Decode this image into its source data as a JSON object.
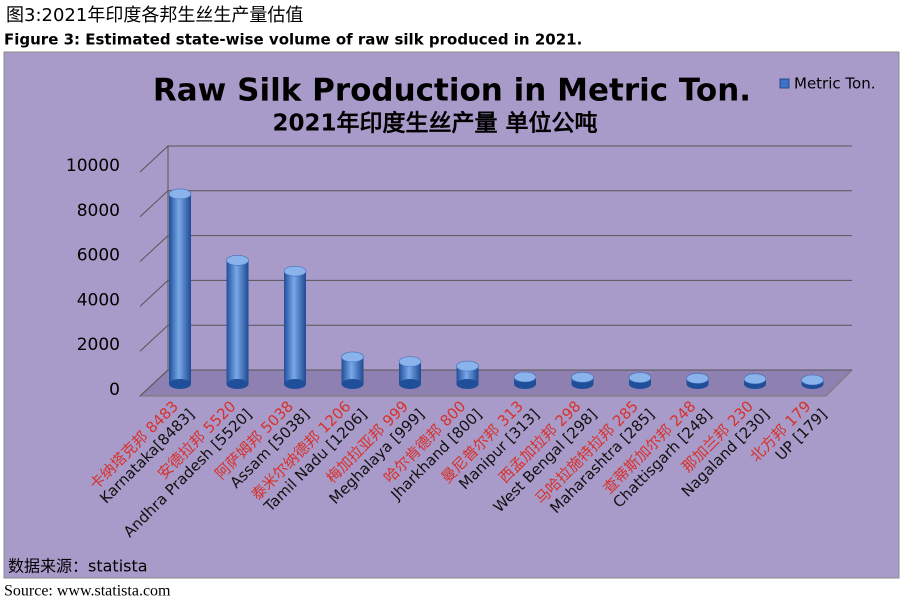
{
  "caption_cn": "图3:2021年印度各邦生丝生产量估值",
  "caption_en": "Figure 3: Estimated state-wise volume of raw silk produced in 2021.",
  "chart_data": {
    "type": "bar",
    "title": "Raw Silk Production  in Metric Ton.",
    "subtitle": "2021年印度生丝产量     单位公吨",
    "categories": [
      "Karnataka[8483]",
      "Andhra Pradesh [5520]",
      "Assam [5038]",
      "Tamil Nadu [1206]",
      "Meghalaya [999]",
      "Jharkhand [800]",
      "Manipur [313]",
      "West Bengal [298]",
      "Maharashtra [285]",
      "Chattisgarh [248]",
      "Nagaland [230]",
      "UP [179]"
    ],
    "annotations": [
      "卡纳塔克邦 8483",
      "安德拉邦 5520",
      "阿萨姆邦 5038",
      "泰米尔纳德邦 1206",
      "梅加拉亚邦 999",
      "哈尔肯德邦 800",
      "曼尼普尔邦 313",
      "西孟加拉邦 298",
      "马哈拉施特拉邦 285",
      "查蒂斯加尔邦 248",
      "那加兰邦 230",
      "北方邦 179"
    ],
    "series": [
      {
        "name": "Metric Ton.",
        "color": "#3d72c4",
        "values": [
          8483,
          5520,
          5038,
          1206,
          999,
          800,
          313,
          298,
          285,
          248,
          230,
          179
        ]
      }
    ],
    "ylim": [
      0,
      10000
    ],
    "yticks": [
      0,
      2000,
      4000,
      6000,
      8000,
      10000
    ],
    "grid": true,
    "legend": "top-right"
  },
  "source_note": "数据来源：statista",
  "source": "Source: www.statista.com"
}
